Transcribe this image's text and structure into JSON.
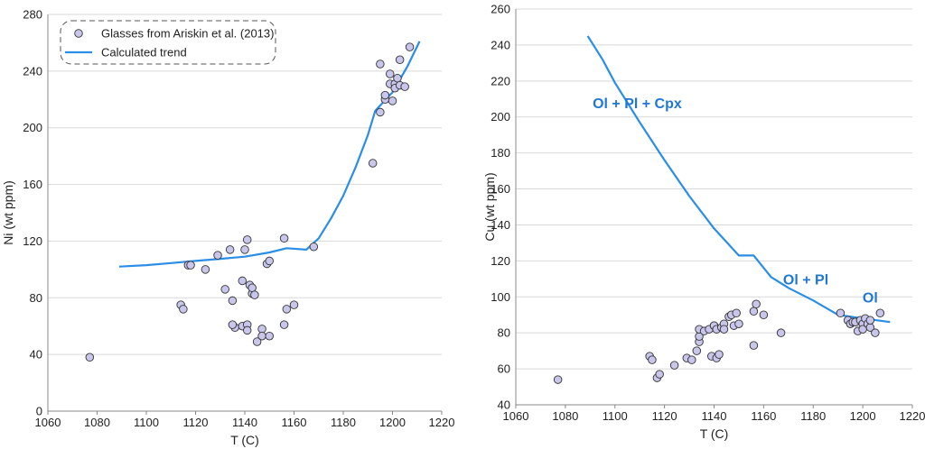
{
  "colors": {
    "point_fill": "#c9c6ec",
    "point_stroke": "#333333",
    "trend": "#2a8ee6",
    "annotation": "#1f77d4",
    "grid": "#d9d9d9"
  },
  "chart_data": [
    {
      "type": "scatter",
      "xlabel": "T (C)",
      "ylabel": "Ni (wt ppm)",
      "xlim": [
        1060,
        1220
      ],
      "ylim": [
        0,
        280
      ],
      "xticks": [
        "1060",
        "1080",
        "1100",
        "1120",
        "1140",
        "1160",
        "1180",
        "1200",
        "1220"
      ],
      "yticks": [
        "0",
        "40",
        "80",
        "120",
        "160",
        "200",
        "240",
        "280"
      ],
      "grid": "horizontal",
      "legend": {
        "placement": "top-left",
        "entries": [
          {
            "label": "Glasses from Ariskin et al. (2013)",
            "kind": "point"
          },
          {
            "label": "Calculated trend",
            "kind": "line"
          }
        ]
      },
      "series": [
        {
          "name": "Glasses from Ariskin et al. (2013)",
          "kind": "points",
          "points": [
            [
              1077,
              38
            ],
            [
              1114,
              75
            ],
            [
              1115,
              72
            ],
            [
              1117,
              103
            ],
            [
              1118,
              103
            ],
            [
              1124,
              100
            ],
            [
              1129,
              110
            ],
            [
              1132,
              86
            ],
            [
              1134,
              114
            ],
            [
              1135,
              78
            ],
            [
              1136,
              59
            ],
            [
              1135,
              61
            ],
            [
              1139,
              60
            ],
            [
              1139,
              92
            ],
            [
              1140,
              114
            ],
            [
              1141,
              121
            ],
            [
              1141,
              61
            ],
            [
              1141,
              57
            ],
            [
              1142,
              89
            ],
            [
              1143,
              83
            ],
            [
              1143,
              87
            ],
            [
              1144,
              82
            ],
            [
              1145,
              49
            ],
            [
              1147,
              58
            ],
            [
              1147,
              53
            ],
            [
              1149,
              104
            ],
            [
              1150,
              106
            ],
            [
              1150,
              53
            ],
            [
              1156,
              122
            ],
            [
              1156,
              61
            ],
            [
              1157,
              72
            ],
            [
              1160,
              75
            ],
            [
              1168,
              116
            ],
            [
              1192,
              175
            ],
            [
              1195,
              211
            ],
            [
              1195,
              245
            ],
            [
              1197,
              220
            ],
            [
              1197,
              223
            ],
            [
              1199,
              231
            ],
            [
              1199,
              238
            ],
            [
              1200,
              219
            ],
            [
              1201,
              231
            ],
            [
              1201,
              228
            ],
            [
              1202,
              235
            ],
            [
              1203,
              248
            ],
            [
              1203,
              230
            ],
            [
              1205,
              229
            ],
            [
              1207,
              257
            ]
          ]
        },
        {
          "name": "Calculated trend",
          "kind": "line",
          "points": [
            [
              1089,
              102
            ],
            [
              1100,
              103
            ],
            [
              1110,
              104.5
            ],
            [
              1120,
              106
            ],
            [
              1130,
              107.5
            ],
            [
              1140,
              109
            ],
            [
              1150,
              112
            ],
            [
              1157,
              115
            ],
            [
              1165,
              114
            ],
            [
              1170,
              122
            ],
            [
              1175,
              136
            ],
            [
              1180,
              152
            ],
            [
              1185,
              172
            ],
            [
              1190,
              195
            ],
            [
              1193,
              212
            ],
            [
              1200,
              225
            ],
            [
              1206,
              243
            ],
            [
              1211,
              261
            ]
          ]
        }
      ]
    },
    {
      "type": "scatter",
      "xlabel": "T (C)",
      "ylabel": "Cu (wt ppm)",
      "xlim": [
        1060,
        1220
      ],
      "ylim": [
        40,
        260
      ],
      "xticks": [
        "1060",
        "1080",
        "1100",
        "1120",
        "1140",
        "1160",
        "1180",
        "1200",
        "1220"
      ],
      "yticks": [
        "40",
        "60",
        "80",
        "100",
        "120",
        "140",
        "160",
        "180",
        "200",
        "220",
        "240",
        "260"
      ],
      "grid": "horizontal",
      "annotations": [
        {
          "text": "Ol + Pl + Cpx",
          "x": 1109,
          "y": 205
        },
        {
          "text": "Ol + Pl",
          "x": 1177,
          "y": 107
        },
        {
          "text": "Ol",
          "x": 1203,
          "y": 97
        }
      ],
      "series": [
        {
          "name": "",
          "kind": "points",
          "points": [
            [
              1077,
              54
            ],
            [
              1114,
              67
            ],
            [
              1115,
              65
            ],
            [
              1117,
              55
            ],
            [
              1118,
              57
            ],
            [
              1124,
              62
            ],
            [
              1129,
              66
            ],
            [
              1131,
              65
            ],
            [
              1133,
              70
            ],
            [
              1134,
              75
            ],
            [
              1134,
              78
            ],
            [
              1134,
              82
            ],
            [
              1136,
              81
            ],
            [
              1138,
              82
            ],
            [
              1139,
              67
            ],
            [
              1140,
              84
            ],
            [
              1140,
              84
            ],
            [
              1141,
              66
            ],
            [
              1141,
              82
            ],
            [
              1142,
              68
            ],
            [
              1143,
              83
            ],
            [
              1144,
              85
            ],
            [
              1144,
              82
            ],
            [
              1146,
              89
            ],
            [
              1147,
              90
            ],
            [
              1148,
              84
            ],
            [
              1149,
              91
            ],
            [
              1150,
              85
            ],
            [
              1156,
              92
            ],
            [
              1156,
              73
            ],
            [
              1157,
              96
            ],
            [
              1160,
              90
            ],
            [
              1167,
              80
            ],
            [
              1191,
              91
            ],
            [
              1194,
              87
            ],
            [
              1195,
              85
            ],
            [
              1196,
              86
            ],
            [
              1197,
              86
            ],
            [
              1198,
              81
            ],
            [
              1199,
              87
            ],
            [
              1200,
              85
            ],
            [
              1200,
              82
            ],
            [
              1201,
              88
            ],
            [
              1202,
              85
            ],
            [
              1203,
              83
            ],
            [
              1203,
              87
            ],
            [
              1205,
              80
            ],
            [
              1207,
              91
            ]
          ]
        },
        {
          "name": "",
          "kind": "line",
          "points": [
            [
              1089,
              245
            ],
            [
              1095,
              232
            ],
            [
              1100,
              219
            ],
            [
              1110,
              197
            ],
            [
              1120,
              176
            ],
            [
              1130,
              156
            ],
            [
              1140,
              138
            ],
            [
              1150,
              123
            ],
            [
              1156,
              123
            ],
            [
              1163,
              111
            ],
            [
              1170,
              105
            ],
            [
              1180,
              98
            ],
            [
              1190,
              90
            ],
            [
              1200,
              88
            ],
            [
              1211,
              86
            ]
          ]
        }
      ]
    }
  ]
}
